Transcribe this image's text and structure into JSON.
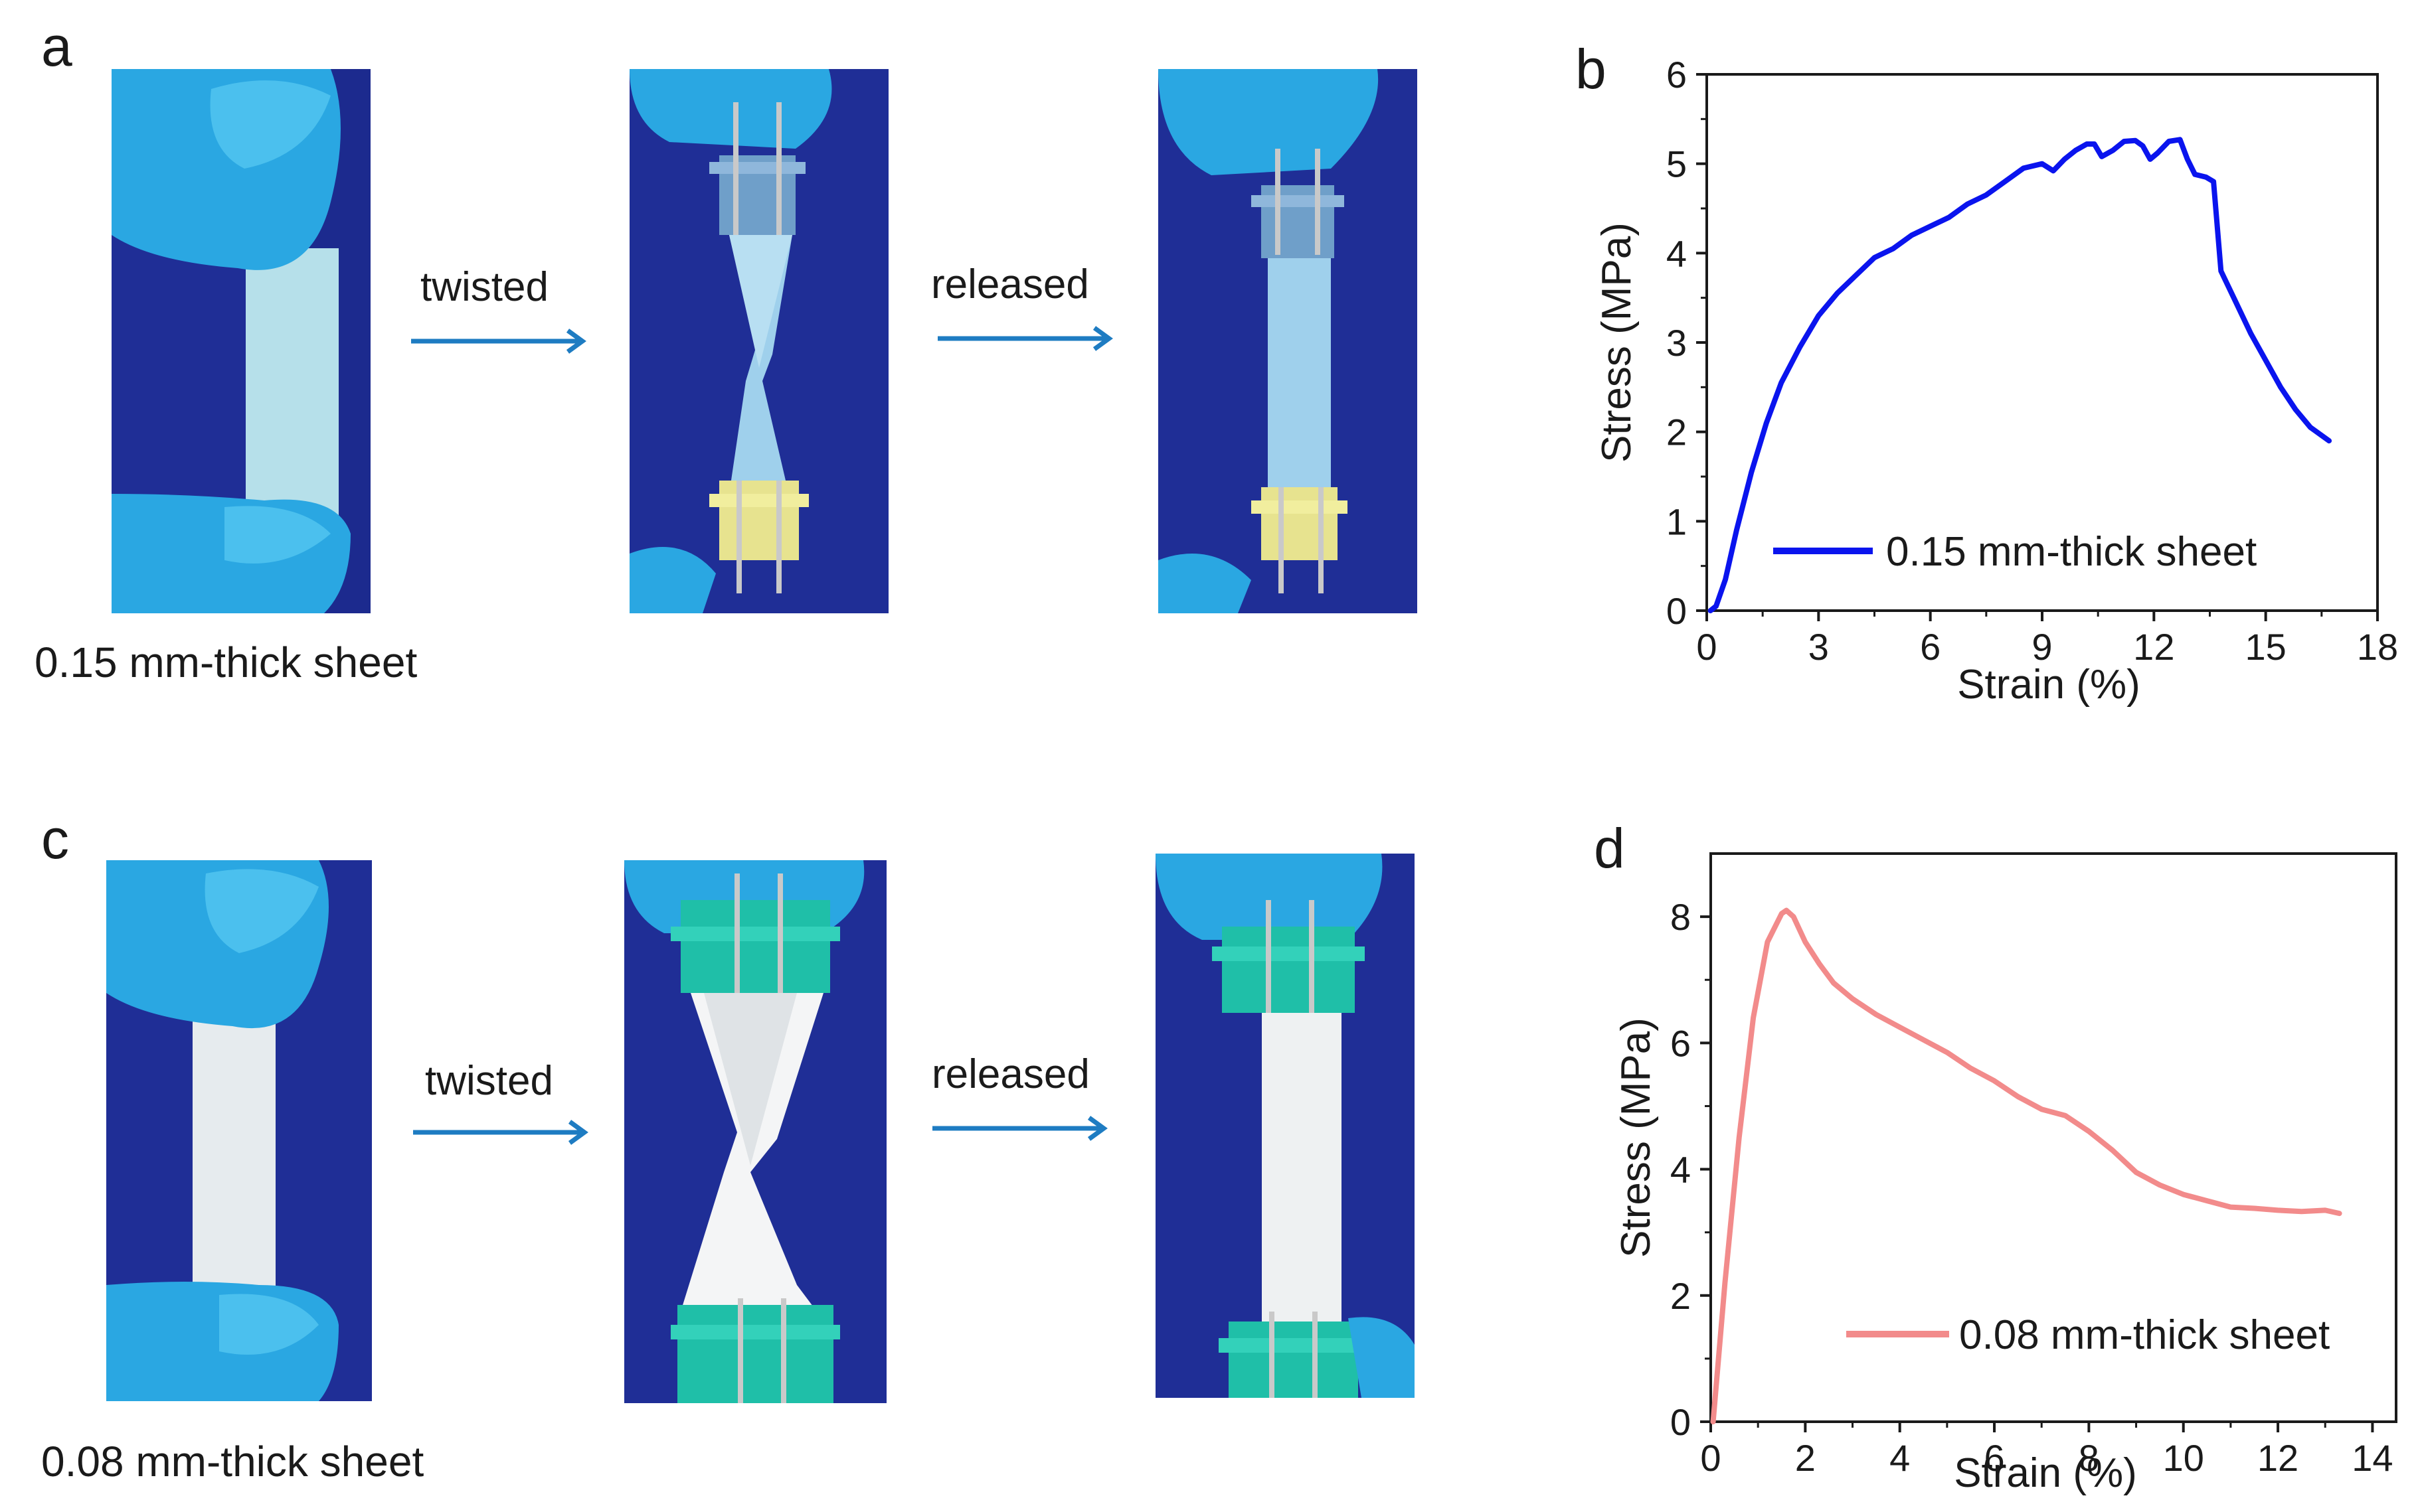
{
  "panels": {
    "a": {
      "letter": "a",
      "caption": "0.15 mm-thick sheet",
      "step1": "twisted",
      "step2": "released"
    },
    "b": {
      "letter": "b"
    },
    "c": {
      "letter": "c",
      "caption": "0.08 mm-thick sheet",
      "step1": "twisted",
      "step2": "released"
    },
    "d": {
      "letter": "d"
    }
  },
  "colors": {
    "background_blue": "#1f2e96",
    "glove": "#2aa7e2",
    "arrow": "#1e7cc2",
    "clip_blue": "#6f9fc9",
    "clip_yellow": "#e7e38f",
    "clip_teal": "#1fbfa8",
    "sheet_a": "#b6e0ea",
    "sheet_c": "#e6ebee",
    "curve_b": "#0a14ee",
    "curve_d": "#f28b8b"
  },
  "chart_data": [
    {
      "id": "b",
      "type": "line",
      "xlabel": "Strain (%)",
      "ylabel": "Stress (MPa)",
      "xlim": [
        0,
        18
      ],
      "ylim": [
        0,
        6
      ],
      "xticks": [
        0,
        3,
        6,
        9,
        12,
        15,
        18
      ],
      "yticks": [
        0,
        1,
        2,
        3,
        4,
        5,
        6
      ],
      "legend": "0.15 mm-thick sheet",
      "series": [
        {
          "name": "0.15 mm-thick sheet",
          "color": "#0a14ee",
          "x": [
            0.1,
            0.25,
            0.5,
            0.8,
            1.2,
            1.6,
            2.0,
            2.5,
            3.0,
            3.5,
            4.0,
            4.5,
            5.0,
            5.5,
            6.0,
            6.5,
            7.0,
            7.5,
            8.0,
            8.5,
            9.0,
            9.3,
            9.6,
            9.9,
            10.2,
            10.4,
            10.6,
            10.9,
            11.2,
            11.5,
            11.7,
            11.9,
            12.1,
            12.4,
            12.7,
            12.9,
            13.1,
            13.4,
            13.6,
            13.8,
            14.2,
            14.6,
            15.0,
            15.4,
            15.8,
            16.2,
            16.7
          ],
          "y": [
            0.0,
            0.05,
            0.35,
            0.9,
            1.55,
            2.1,
            2.55,
            2.95,
            3.3,
            3.55,
            3.75,
            3.95,
            4.05,
            4.2,
            4.3,
            4.4,
            4.55,
            4.65,
            4.8,
            4.95,
            5.0,
            4.92,
            5.05,
            5.15,
            5.22,
            5.22,
            5.08,
            5.15,
            5.25,
            5.26,
            5.2,
            5.05,
            5.12,
            5.25,
            5.27,
            5.05,
            4.88,
            4.85,
            4.8,
            3.8,
            3.45,
            3.1,
            2.8,
            2.5,
            2.25,
            2.05,
            1.9
          ]
        }
      ]
    },
    {
      "id": "d",
      "type": "line",
      "xlabel": "Strain (%)",
      "ylabel": "Stress (MPa)",
      "xlim": [
        0,
        14.5
      ],
      "ylim": [
        0,
        9
      ],
      "xticks": [
        0,
        2,
        4,
        6,
        8,
        10,
        12,
        14
      ],
      "yticks": [
        0,
        2,
        4,
        6,
        8
      ],
      "legend": "0.08 mm-thick sheet",
      "series": [
        {
          "name": "0.08 mm-thick sheet",
          "color": "#f28b8b",
          "x": [
            0.05,
            0.3,
            0.6,
            0.9,
            1.2,
            1.5,
            1.6,
            1.75,
            2.0,
            2.3,
            2.6,
            3.0,
            3.5,
            4.0,
            4.5,
            5.0,
            5.5,
            6.0,
            6.5,
            7.0,
            7.5,
            8.0,
            8.5,
            9.0,
            9.5,
            10.0,
            10.5,
            11.0,
            11.5,
            12.0,
            12.5,
            13.0,
            13.3
          ],
          "y": [
            0.0,
            2.2,
            4.5,
            6.4,
            7.6,
            8.05,
            8.1,
            8.0,
            7.6,
            7.25,
            6.95,
            6.7,
            6.45,
            6.25,
            6.05,
            5.85,
            5.6,
            5.4,
            5.15,
            4.95,
            4.85,
            4.6,
            4.3,
            3.95,
            3.75,
            3.6,
            3.5,
            3.4,
            3.38,
            3.35,
            3.33,
            3.35,
            3.3
          ]
        }
      ]
    }
  ]
}
